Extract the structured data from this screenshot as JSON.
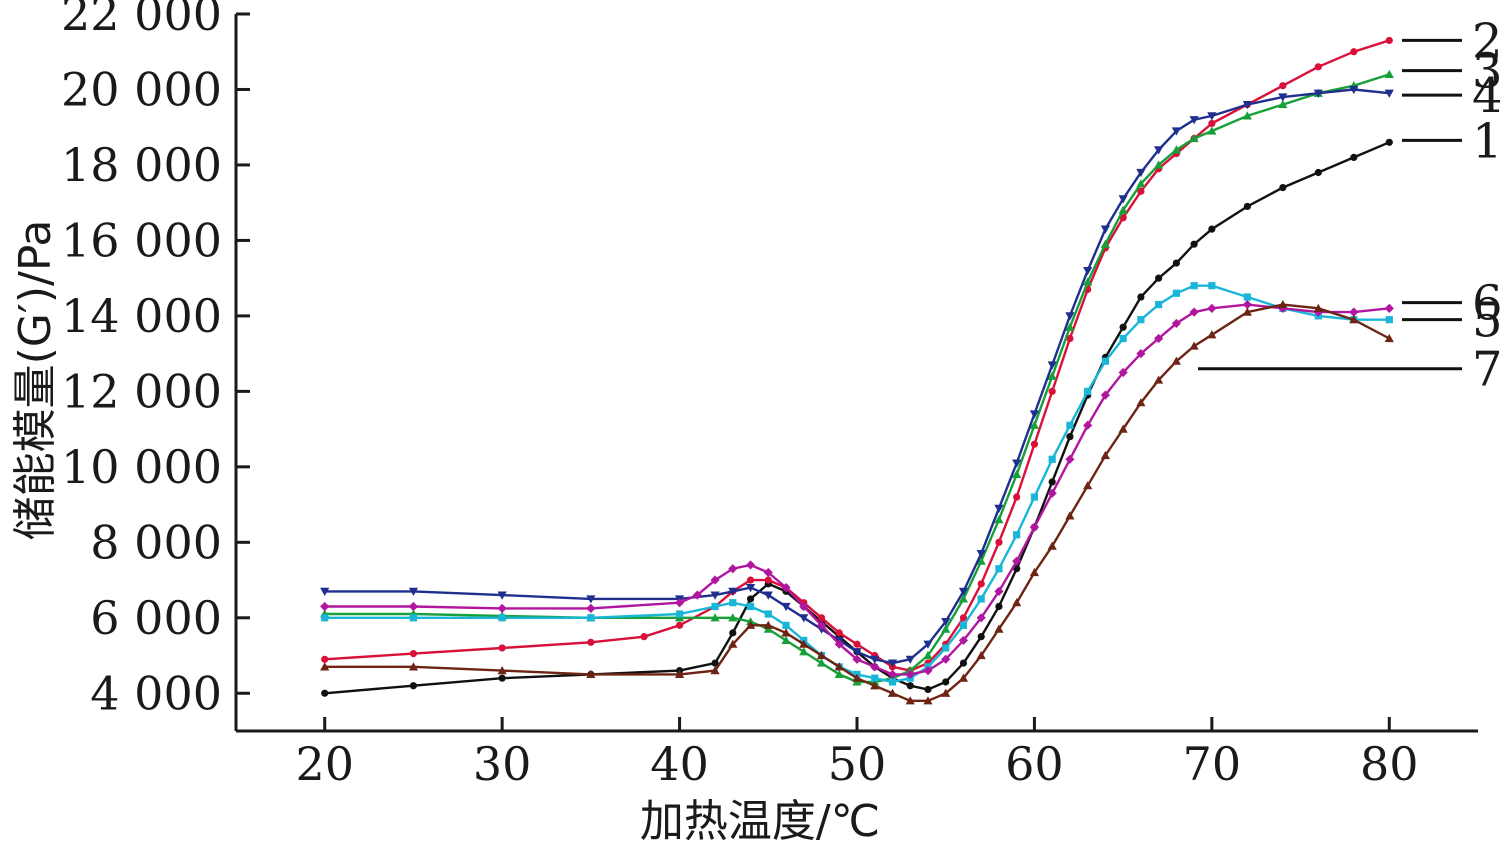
{
  "chart_data": {
    "type": "line",
    "xlabel": "加热温度/℃",
    "ylabel": "储能模量(G′)/Pa",
    "x_ticks": [
      20,
      30,
      40,
      50,
      60,
      70,
      80
    ],
    "y_ticks": [
      4000,
      6000,
      8000,
      10000,
      12000,
      14000,
      16000,
      18000,
      20000,
      22000
    ],
    "y_tick_labels": [
      "4 000",
      "6 000",
      "8 000",
      "10 000",
      "12 000",
      "14 000",
      "16 000",
      "18 000",
      "20 000",
      "22 000"
    ],
    "xlim": [
      15,
      85
    ],
    "ylim": [
      3000,
      22000
    ],
    "grid": false,
    "series": [
      {
        "label": "1",
        "color": "#111111",
        "marker": "circle",
        "label_value": 18650,
        "points": [
          [
            20,
            4000
          ],
          [
            25,
            4200
          ],
          [
            30,
            4400
          ],
          [
            35,
            4500
          ],
          [
            40,
            4600
          ],
          [
            42,
            4800
          ],
          [
            43,
            5600
          ],
          [
            44,
            6500
          ],
          [
            45,
            6900
          ],
          [
            46,
            6700
          ],
          [
            47,
            6300
          ],
          [
            48,
            5900
          ],
          [
            49,
            5500
          ],
          [
            50,
            5100
          ],
          [
            51,
            4700
          ],
          [
            52,
            4400
          ],
          [
            53,
            4200
          ],
          [
            54,
            4100
          ],
          [
            55,
            4300
          ],
          [
            56,
            4800
          ],
          [
            57,
            5500
          ],
          [
            58,
            6300
          ],
          [
            59,
            7300
          ],
          [
            60,
            8400
          ],
          [
            61,
            9600
          ],
          [
            62,
            10800
          ],
          [
            63,
            11900
          ],
          [
            64,
            12900
          ],
          [
            65,
            13700
          ],
          [
            66,
            14500
          ],
          [
            67,
            15000
          ],
          [
            68,
            15400
          ],
          [
            69,
            15900
          ],
          [
            70,
            16300
          ],
          [
            72,
            16900
          ],
          [
            74,
            17400
          ],
          [
            76,
            17800
          ],
          [
            78,
            18200
          ],
          [
            80,
            18600
          ]
        ]
      },
      {
        "label": "2",
        "color": "#d8103a",
        "marker": "circle",
        "label_value": 21300,
        "points": [
          [
            20,
            4900
          ],
          [
            25,
            5050
          ],
          [
            30,
            5200
          ],
          [
            35,
            5350
          ],
          [
            38,
            5500
          ],
          [
            40,
            5800
          ],
          [
            42,
            6300
          ],
          [
            43,
            6700
          ],
          [
            44,
            7000
          ],
          [
            45,
            7000
          ],
          [
            46,
            6800
          ],
          [
            47,
            6400
          ],
          [
            48,
            6000
          ],
          [
            49,
            5600
          ],
          [
            50,
            5300
          ],
          [
            51,
            5000
          ],
          [
            52,
            4700
          ],
          [
            53,
            4600
          ],
          [
            54,
            4800
          ],
          [
            55,
            5300
          ],
          [
            56,
            6000
          ],
          [
            57,
            6900
          ],
          [
            58,
            8000
          ],
          [
            59,
            9200
          ],
          [
            60,
            10600
          ],
          [
            61,
            12000
          ],
          [
            62,
            13400
          ],
          [
            63,
            14700
          ],
          [
            64,
            15800
          ],
          [
            65,
            16600
          ],
          [
            66,
            17300
          ],
          [
            67,
            17900
          ],
          [
            68,
            18300
          ],
          [
            69,
            18700
          ],
          [
            70,
            19100
          ],
          [
            72,
            19600
          ],
          [
            74,
            20100
          ],
          [
            76,
            20600
          ],
          [
            78,
            21000
          ],
          [
            80,
            21300
          ]
        ]
      },
      {
        "label": "3",
        "color": "#17a03a",
        "marker": "triangle-up",
        "label_value": 20500,
        "points": [
          [
            20,
            6100
          ],
          [
            25,
            6100
          ],
          [
            30,
            6050
          ],
          [
            35,
            6000
          ],
          [
            40,
            6000
          ],
          [
            42,
            6000
          ],
          [
            43,
            6000
          ],
          [
            44,
            5900
          ],
          [
            45,
            5700
          ],
          [
            46,
            5400
          ],
          [
            47,
            5100
          ],
          [
            48,
            4800
          ],
          [
            49,
            4500
          ],
          [
            50,
            4300
          ],
          [
            51,
            4300
          ],
          [
            52,
            4400
          ],
          [
            53,
            4600
          ],
          [
            54,
            5000
          ],
          [
            55,
            5700
          ],
          [
            56,
            6500
          ],
          [
            57,
            7500
          ],
          [
            58,
            8600
          ],
          [
            59,
            9800
          ],
          [
            60,
            11100
          ],
          [
            61,
            12400
          ],
          [
            62,
            13700
          ],
          [
            63,
            14900
          ],
          [
            64,
            15900
          ],
          [
            65,
            16800
          ],
          [
            66,
            17500
          ],
          [
            67,
            18000
          ],
          [
            68,
            18400
          ],
          [
            69,
            18700
          ],
          [
            70,
            18900
          ],
          [
            72,
            19300
          ],
          [
            74,
            19600
          ],
          [
            76,
            19900
          ],
          [
            78,
            20100
          ],
          [
            80,
            20400
          ]
        ]
      },
      {
        "label": "4",
        "color": "#1f2f8e",
        "marker": "triangle-down",
        "label_value": 19850,
        "points": [
          [
            20,
            6700
          ],
          [
            25,
            6700
          ],
          [
            30,
            6600
          ],
          [
            35,
            6500
          ],
          [
            40,
            6500
          ],
          [
            42,
            6600
          ],
          [
            43,
            6700
          ],
          [
            44,
            6800
          ],
          [
            45,
            6600
          ],
          [
            46,
            6300
          ],
          [
            47,
            6000
          ],
          [
            48,
            5700
          ],
          [
            49,
            5400
          ],
          [
            50,
            5100
          ],
          [
            51,
            4900
          ],
          [
            52,
            4800
          ],
          [
            53,
            4900
          ],
          [
            54,
            5300
          ],
          [
            55,
            5900
          ],
          [
            56,
            6700
          ],
          [
            57,
            7700
          ],
          [
            58,
            8900
          ],
          [
            59,
            10100
          ],
          [
            60,
            11400
          ],
          [
            61,
            12700
          ],
          [
            62,
            14000
          ],
          [
            63,
            15200
          ],
          [
            64,
            16300
          ],
          [
            65,
            17100
          ],
          [
            66,
            17800
          ],
          [
            67,
            18400
          ],
          [
            68,
            18900
          ],
          [
            69,
            19200
          ],
          [
            70,
            19300
          ],
          [
            72,
            19600
          ],
          [
            74,
            19800
          ],
          [
            76,
            19900
          ],
          [
            78,
            20000
          ],
          [
            80,
            19900
          ]
        ]
      },
      {
        "label": "5",
        "color": "#19b6d8",
        "marker": "square",
        "label_value": 13900,
        "points": [
          [
            20,
            6000
          ],
          [
            25,
            6000
          ],
          [
            30,
            6000
          ],
          [
            35,
            6000
          ],
          [
            40,
            6100
          ],
          [
            42,
            6300
          ],
          [
            43,
            6400
          ],
          [
            44,
            6300
          ],
          [
            45,
            6100
          ],
          [
            46,
            5800
          ],
          [
            47,
            5400
          ],
          [
            48,
            5000
          ],
          [
            49,
            4700
          ],
          [
            50,
            4500
          ],
          [
            51,
            4400
          ],
          [
            52,
            4300
          ],
          [
            53,
            4400
          ],
          [
            54,
            4700
          ],
          [
            55,
            5200
          ],
          [
            56,
            5800
          ],
          [
            57,
            6500
          ],
          [
            58,
            7300
          ],
          [
            59,
            8200
          ],
          [
            60,
            9200
          ],
          [
            61,
            10200
          ],
          [
            62,
            11100
          ],
          [
            63,
            12000
          ],
          [
            64,
            12800
          ],
          [
            65,
            13400
          ],
          [
            66,
            13900
          ],
          [
            67,
            14300
          ],
          [
            68,
            14600
          ],
          [
            69,
            14800
          ],
          [
            70,
            14800
          ],
          [
            72,
            14500
          ],
          [
            74,
            14200
          ],
          [
            76,
            14000
          ],
          [
            78,
            13900
          ],
          [
            80,
            13900
          ]
        ]
      },
      {
        "label": "6",
        "color": "#b0169e",
        "marker": "diamond",
        "label_value": 14350,
        "points": [
          [
            20,
            6300
          ],
          [
            25,
            6300
          ],
          [
            30,
            6250
          ],
          [
            35,
            6250
          ],
          [
            40,
            6400
          ],
          [
            41,
            6600
          ],
          [
            42,
            7000
          ],
          [
            43,
            7300
          ],
          [
            44,
            7400
          ],
          [
            45,
            7200
          ],
          [
            46,
            6800
          ],
          [
            47,
            6300
          ],
          [
            48,
            5800
          ],
          [
            49,
            5300
          ],
          [
            50,
            4900
          ],
          [
            51,
            4700
          ],
          [
            52,
            4500
          ],
          [
            53,
            4500
          ],
          [
            54,
            4600
          ],
          [
            55,
            4900
          ],
          [
            56,
            5400
          ],
          [
            57,
            6000
          ],
          [
            58,
            6700
          ],
          [
            59,
            7500
          ],
          [
            60,
            8400
          ],
          [
            61,
            9300
          ],
          [
            62,
            10200
          ],
          [
            63,
            11100
          ],
          [
            64,
            11900
          ],
          [
            65,
            12500
          ],
          [
            66,
            13000
          ],
          [
            67,
            13400
          ],
          [
            68,
            13800
          ],
          [
            69,
            14100
          ],
          [
            70,
            14200
          ],
          [
            72,
            14300
          ],
          [
            74,
            14200
          ],
          [
            76,
            14100
          ],
          [
            78,
            14100
          ],
          [
            80,
            14200
          ]
        ]
      },
      {
        "label": "7",
        "color": "#6e2414",
        "marker": "triangle-up",
        "label_value": 12600,
        "points": [
          [
            20,
            4700
          ],
          [
            25,
            4700
          ],
          [
            30,
            4600
          ],
          [
            35,
            4500
          ],
          [
            40,
            4500
          ],
          [
            42,
            4600
          ],
          [
            43,
            5300
          ],
          [
            44,
            5800
          ],
          [
            45,
            5800
          ],
          [
            46,
            5600
          ],
          [
            47,
            5300
          ],
          [
            48,
            5000
          ],
          [
            49,
            4700
          ],
          [
            50,
            4400
          ],
          [
            51,
            4200
          ],
          [
            52,
            4000
          ],
          [
            53,
            3800
          ],
          [
            54,
            3800
          ],
          [
            55,
            4000
          ],
          [
            56,
            4400
          ],
          [
            57,
            5000
          ],
          [
            58,
            5700
          ],
          [
            59,
            6400
          ],
          [
            60,
            7200
          ],
          [
            61,
            7900
          ],
          [
            62,
            8700
          ],
          [
            63,
            9500
          ],
          [
            64,
            10300
          ],
          [
            65,
            11000
          ],
          [
            66,
            11700
          ],
          [
            67,
            12300
          ],
          [
            68,
            12800
          ],
          [
            69,
            13200
          ],
          [
            70,
            13500
          ],
          [
            72,
            14100
          ],
          [
            74,
            14300
          ],
          [
            76,
            14200
          ],
          [
            78,
            13900
          ],
          [
            80,
            13400
          ]
        ]
      }
    ]
  }
}
